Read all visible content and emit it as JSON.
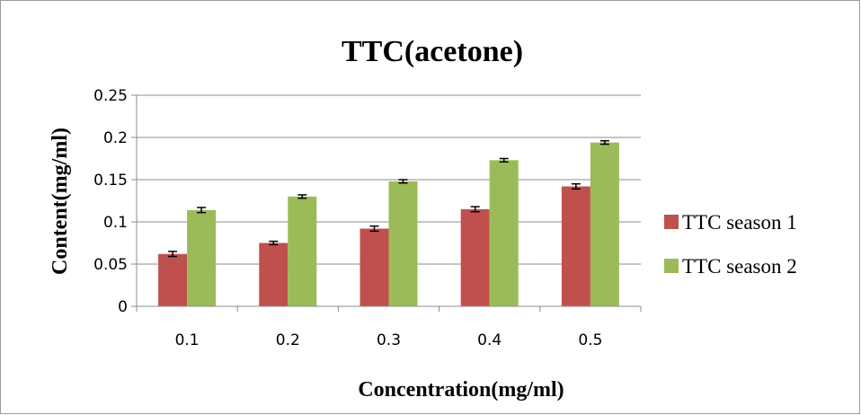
{
  "chart_data": {
    "type": "bar",
    "title": "TTC(acetone)",
    "xlabel": "Concentration(mg/ml)",
    "ylabel": "Content(mg/ml)",
    "categories": [
      "0.1",
      "0.2",
      "0.3",
      "0.4",
      "0.5"
    ],
    "y_ticks": [
      "0",
      "0.05",
      "0.1",
      "0.15",
      "0.2",
      "0.25"
    ],
    "ylim": [
      0,
      0.25
    ],
    "grid": true,
    "legend_position": "right",
    "series": [
      {
        "name": "TTC season 1",
        "color": "#C0504D",
        "values": [
          0.062,
          0.075,
          0.092,
          0.115,
          0.142
        ],
        "errors": [
          0.003,
          0.002,
          0.003,
          0.003,
          0.003
        ]
      },
      {
        "name": "TTC season 2",
        "color": "#9BBB59",
        "values": [
          0.114,
          0.13,
          0.148,
          0.173,
          0.194
        ],
        "errors": [
          0.003,
          0.002,
          0.002,
          0.002,
          0.002
        ]
      }
    ]
  }
}
